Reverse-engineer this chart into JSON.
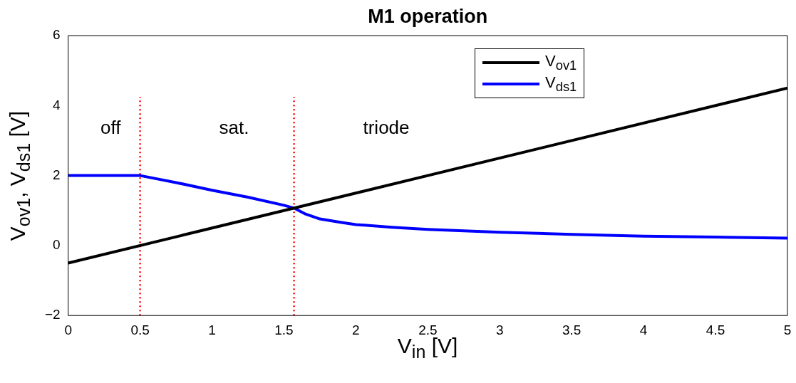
{
  "chart_data": {
    "type": "line",
    "title": "M1 operation",
    "xlabel": "V$_{in}$ [V]",
    "ylabel": "V$_{ov1}$, V$_{ds1}$ [V]",
    "xlim": [
      0,
      5
    ],
    "xticks": [
      0,
      0.5,
      1,
      1.5,
      2,
      2.5,
      3,
      3.5,
      4,
      4.5,
      5
    ],
    "ylim": [
      -2,
      6
    ],
    "yticks": [
      {
        "value": -2,
        "label": "−2"
      },
      0,
      2,
      4,
      6
    ],
    "grid": false,
    "legend": "top right",
    "marker": "none",
    "series": [
      {
        "name": "V$_{ov1}$",
        "color": "#000000",
        "x": [
          0,
          5
        ],
        "values": [
          -0.5,
          4.5
        ]
      },
      {
        "name": "V$_{ds1}$",
        "color": "#0000ff",
        "x": [
          0,
          0.5,
          0.75,
          1,
          1.25,
          1.5,
          1.57,
          1.65,
          1.75,
          1.9,
          2,
          2.25,
          2.5,
          3,
          3.5,
          4,
          4.5,
          5
        ],
        "values": [
          2,
          2,
          1.8,
          1.58,
          1.38,
          1.15,
          1.07,
          0.9,
          0.76,
          0.66,
          0.6,
          0.52,
          0.46,
          0.38,
          0.32,
          0.27,
          0.24,
          0.21
        ]
      },
      {
        "color": "#ff0000",
        "line_style": "dotted",
        "x": [
          0.5,
          0.5
        ],
        "values": [
          -2,
          4.25
        ]
      },
      {
        "color": "#ff0000",
        "line_style": "dotted",
        "x": [
          1.57,
          1.57
        ],
        "values": [
          -2,
          4.25
        ]
      }
    ],
    "annotations": [
      "off",
      "sat.",
      "triode"
    ]
  }
}
